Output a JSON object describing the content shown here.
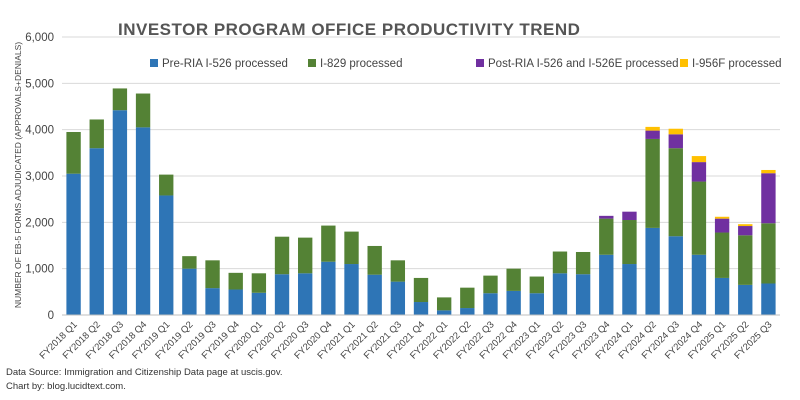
{
  "chart_data": {
    "type": "bar",
    "stacked": true,
    "title": "INVESTOR PROGRAM OFFICE PRODUCTIVITY TREND",
    "ylabel": "NUMBER OF EB-5 FORMS ADJUDICATED (APPROVALS+DENIALS)",
    "xlabel": "",
    "ylim": [
      0,
      6000
    ],
    "yticks": [
      "0",
      "1,000",
      "2,000",
      "3,000",
      "4,000",
      "5,000",
      "6,000"
    ],
    "grid": true,
    "legend": "top",
    "categories": [
      "FY2018 Q1",
      "FY2018 Q2",
      "FY2018 Q3",
      "FY2018 Q4",
      "FY2019 Q1",
      "FY2019 Q2",
      "FY2019 Q3",
      "FY2019 Q4",
      "FY2020 Q1",
      "FY2020 Q2",
      "FY2020 Q3",
      "FY2020 Q4",
      "FY2021 Q1",
      "FY2021 Q2",
      "FY2021 Q3",
      "FY2021 Q4",
      "FY2022 Q1",
      "FY2022 Q2",
      "FY2022 Q3",
      "FY2022 Q4",
      "FY2023 Q1",
      "FY2023 Q2",
      "FY2023 Q3",
      "FY2023 Q4",
      "FY2024 Q1",
      "FY2024 Q2",
      "FY2024 Q3",
      "FY2024 Q4",
      "FY2025 Q1",
      "FY2025 Q2",
      "FY2025 Q3"
    ],
    "series": [
      {
        "name": "Pre-RIA I-526 processed",
        "color": "#2e75b6",
        "values": [
          3050,
          3600,
          4420,
          4050,
          2580,
          1000,
          580,
          550,
          480,
          880,
          900,
          1150,
          1100,
          870,
          720,
          280,
          100,
          150,
          470,
          520,
          470,
          900,
          880,
          1300,
          1100,
          1880,
          1700,
          1300,
          800,
          650,
          680
        ]
      },
      {
        "name": "I-829 processed",
        "color": "#548235",
        "values": [
          900,
          620,
          470,
          730,
          450,
          270,
          600,
          360,
          420,
          810,
          770,
          780,
          700,
          620,
          460,
          520,
          280,
          440,
          380,
          480,
          360,
          470,
          480,
          780,
          950,
          1920,
          1900,
          1580,
          980,
          1070,
          1300
        ]
      },
      {
        "name": "Post-RIA I-526 and I-526E processed",
        "color": "#7030a0",
        "values": [
          0,
          0,
          0,
          0,
          0,
          0,
          0,
          0,
          0,
          0,
          0,
          0,
          0,
          0,
          0,
          0,
          0,
          0,
          0,
          0,
          0,
          0,
          0,
          60,
          180,
          180,
          300,
          420,
          300,
          200,
          1080
        ]
      },
      {
        "name": "I-956F processed",
        "color": "#ffc000",
        "values": [
          0,
          0,
          0,
          0,
          0,
          0,
          0,
          0,
          0,
          0,
          0,
          0,
          0,
          0,
          0,
          0,
          0,
          0,
          0,
          0,
          0,
          0,
          0,
          0,
          0,
          80,
          120,
          130,
          40,
          40,
          70
        ]
      }
    ]
  },
  "footer": {
    "source": "Data Source: Immigration and Citizenship Data page at uscis.gov.",
    "credit": "Chart by: blog.lucidtext.com."
  }
}
